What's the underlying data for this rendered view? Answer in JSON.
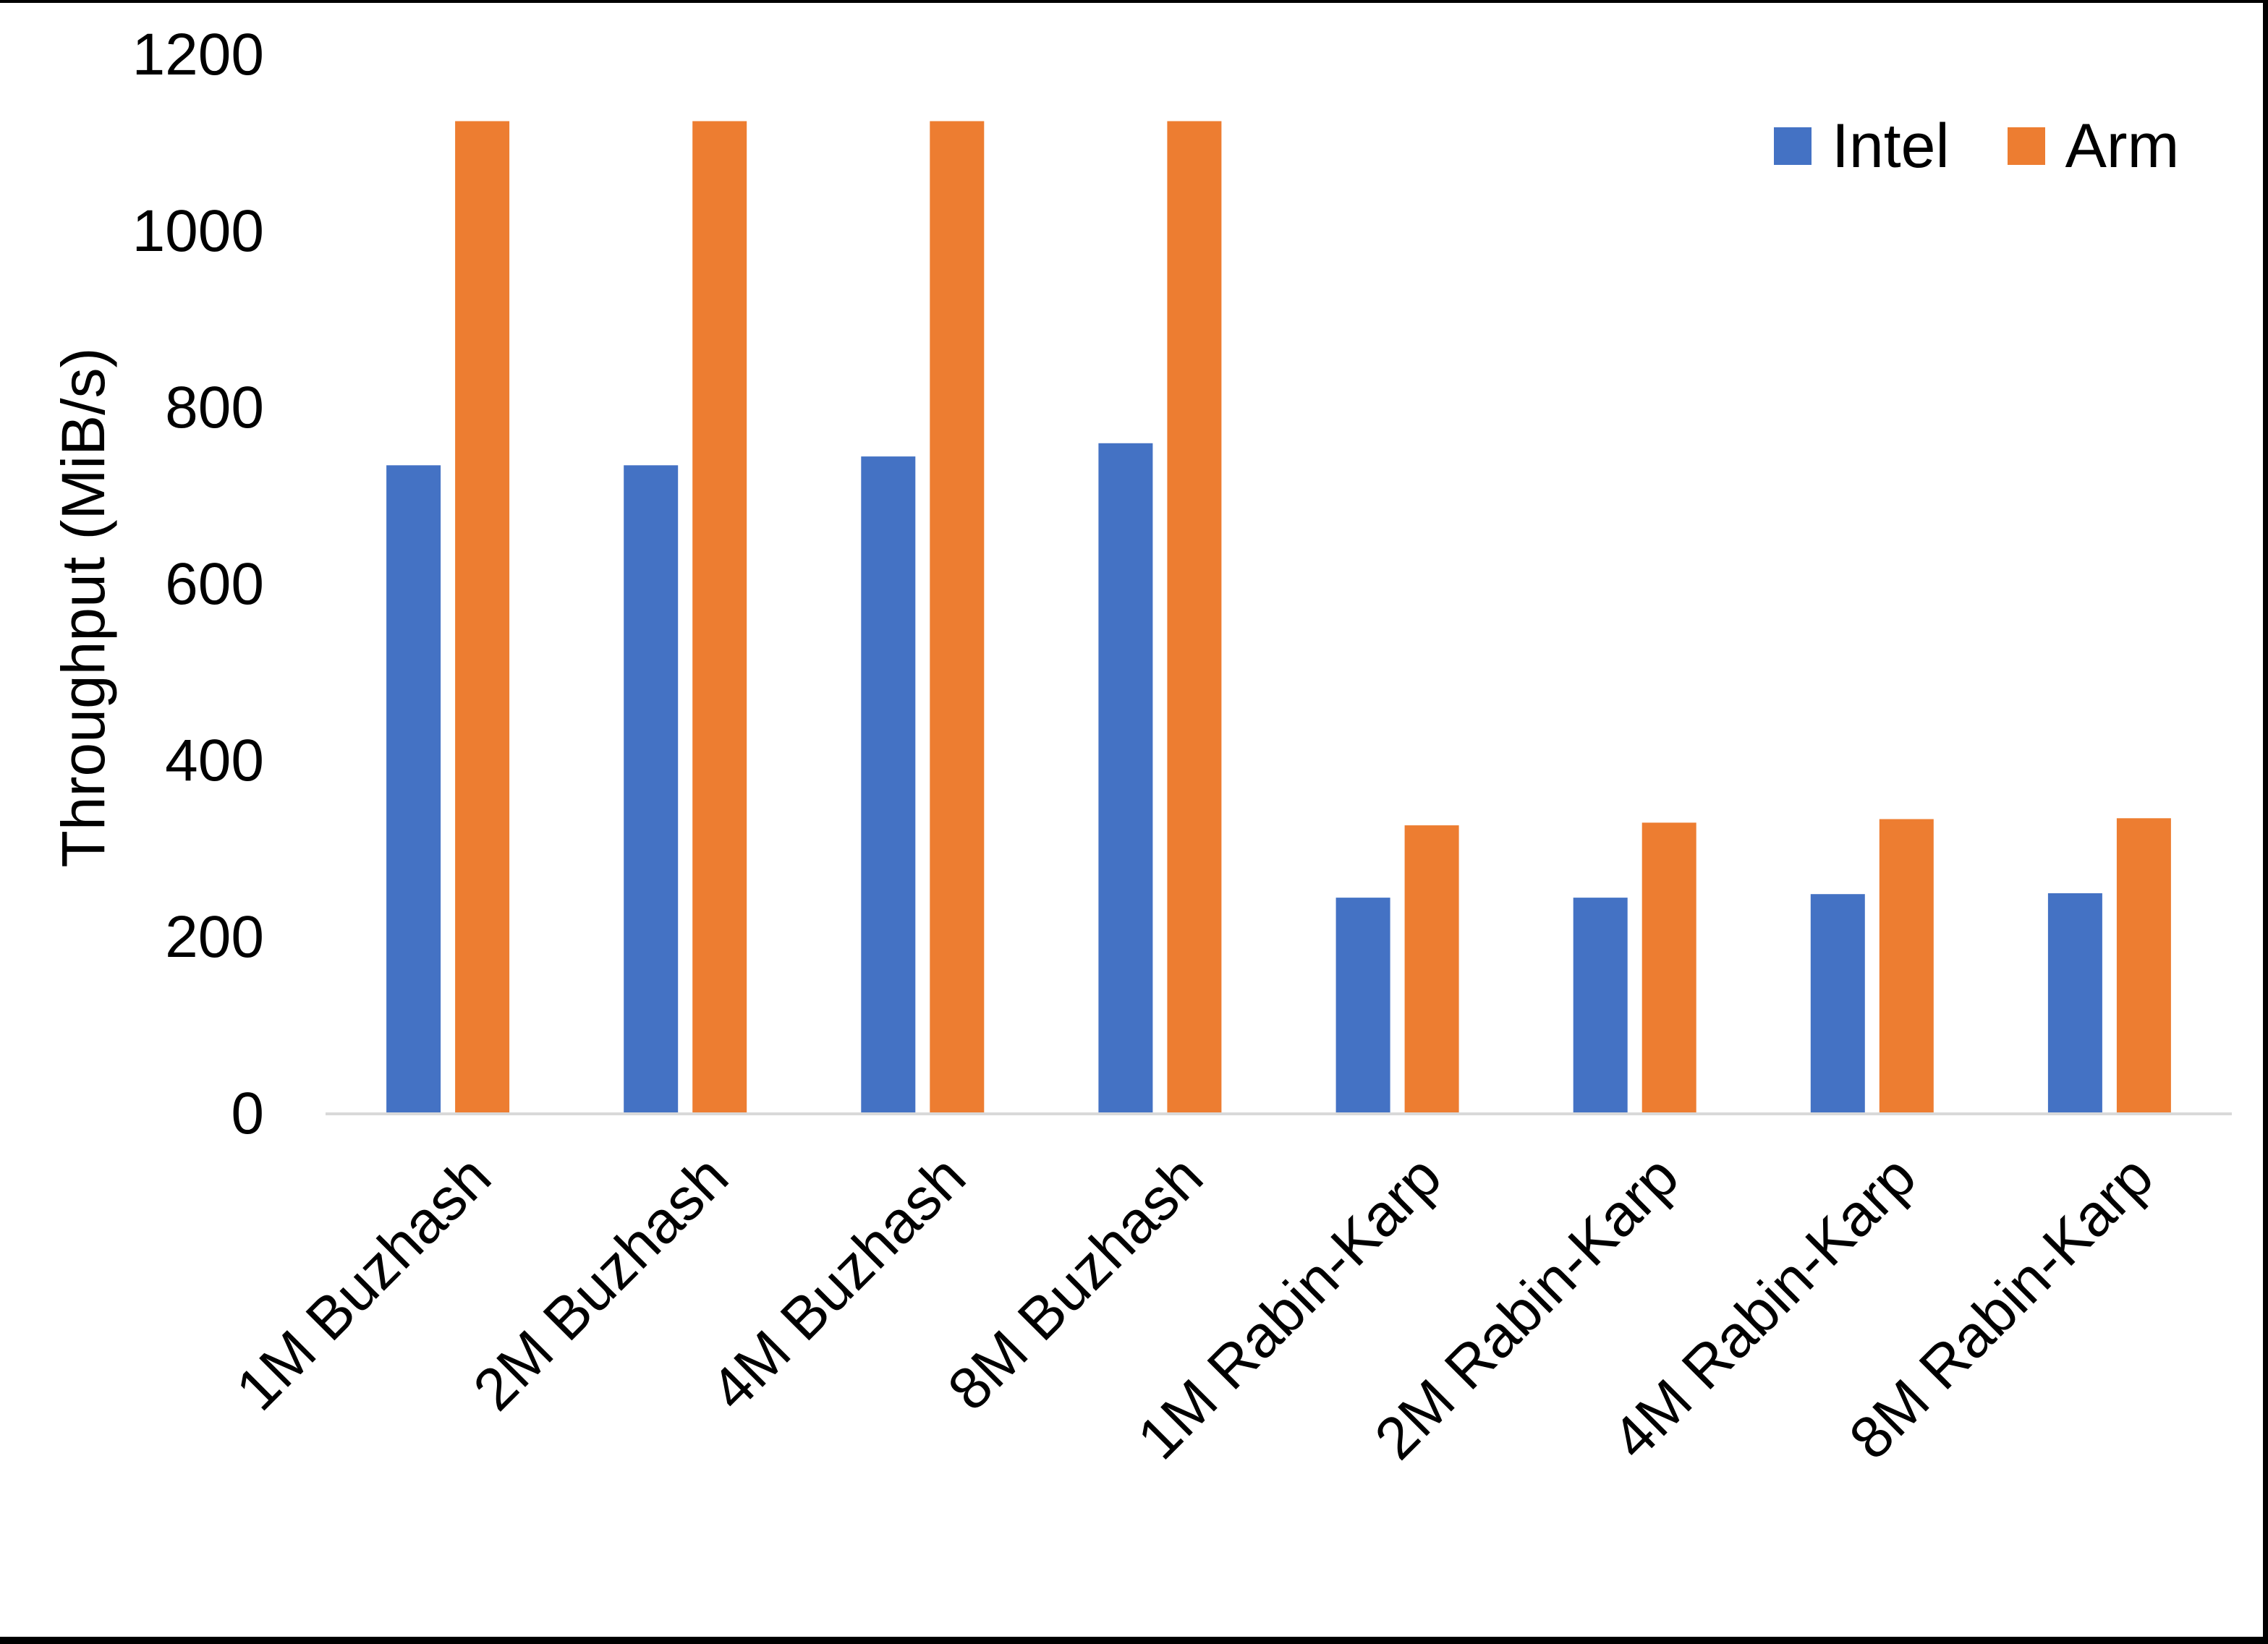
{
  "chart_data": {
    "type": "bar",
    "title": "",
    "xlabel": "",
    "ylabel": "Throughput (MiB/s)",
    "categories": [
      "1M Buzhash",
      "2M Buzhash",
      "4M Buzhash",
      "8M Buzhash",
      "1M Rabin-Karp",
      "2M Rabin-Karp",
      "4M Rabin-Karp",
      "8M Rabin-Karp"
    ],
    "series": [
      {
        "name": "Intel",
        "color": "#4472C4",
        "values": [
          735,
          735,
          745,
          760,
          245,
          245,
          249,
          250
        ]
      },
      {
        "name": "Arm",
        "color": "#ED7D31",
        "values": [
          1125,
          1125,
          1125,
          1125,
          327,
          330,
          334,
          335
        ]
      }
    ],
    "ylim": [
      0,
      1200
    ],
    "yticks": [
      0,
      200,
      400,
      600,
      800,
      1000,
      1200
    ],
    "grid": false,
    "legend_position": "top-right",
    "colors": {
      "axis_line": "#D9D9D9",
      "text": "#000000",
      "frame_border": "#000000",
      "background": "#FFFFFF"
    }
  }
}
